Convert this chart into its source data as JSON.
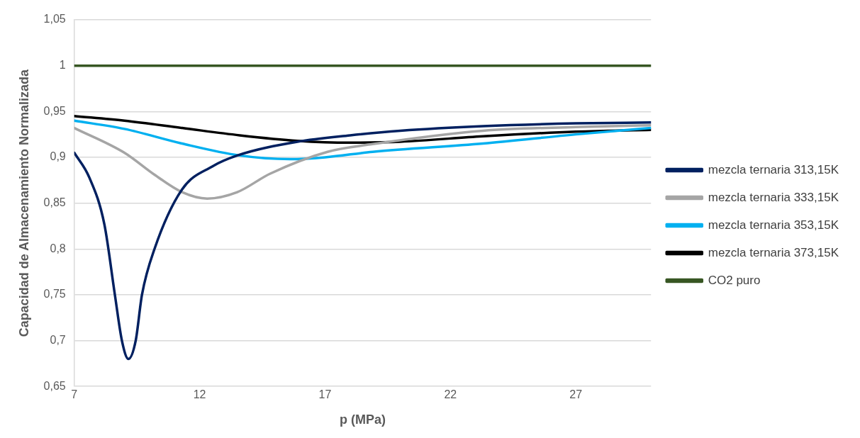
{
  "chart_data": {
    "type": "line",
    "xlabel": "p (MPa)",
    "ylabel": "Capacidad de Almacenamiento Normalizada",
    "xlim": [
      7,
      30
    ],
    "xticks": [
      7,
      12,
      17,
      22,
      27
    ],
    "ylim": [
      0.65,
      1.05
    ],
    "yticks": [
      {
        "value": 0.65,
        "label": "0,65"
      },
      {
        "value": 0.7,
        "label": "0,7"
      },
      {
        "value": 0.75,
        "label": "0,75"
      },
      {
        "value": 0.8,
        "label": "0,8"
      },
      {
        "value": 0.85,
        "label": "0,85"
      },
      {
        "value": 0.9,
        "label": "0,9"
      },
      {
        "value": 0.95,
        "label": "0,95"
      },
      {
        "value": 1,
        "label": "1"
      },
      {
        "value": 1.05,
        "label": "1,05"
      }
    ],
    "grid": "y",
    "legend": "right",
    "marker": "none",
    "line_style": "solid",
    "series": [
      {
        "name": "mezcla ternaria 313,15K",
        "color": "#002060",
        "x": [
          7,
          7.6,
          8.2,
          8.62,
          8.9,
          9.16,
          9.45,
          9.7,
          10.2,
          11.3,
          12.5,
          13.5,
          15.9,
          18,
          20,
          23.3,
          27,
          30
        ],
        "values": [
          0.905,
          0.878,
          0.827,
          0.75,
          0.7,
          0.68,
          0.7,
          0.75,
          0.8,
          0.865,
          0.89,
          0.902,
          0.917,
          0.924,
          0.929,
          0.934,
          0.937,
          0.938
        ]
      },
      {
        "name": "mezcla ternaria 333,15K",
        "color": "#a5a5a5",
        "x": [
          7,
          9,
          10.2,
          11.3,
          12.3,
          13.5,
          14.8,
          17.1,
          18.8,
          23.3,
          27,
          30
        ],
        "values": [
          0.932,
          0.905,
          0.881,
          0.862,
          0.855,
          0.862,
          0.882,
          0.906,
          0.914,
          0.929,
          0.933,
          0.935
        ]
      },
      {
        "name": "mezcla ternaria 353,15K",
        "color": "#00b0f0",
        "x": [
          7,
          9,
          11.3,
          13.6,
          15.6,
          17,
          18.9,
          23.3,
          27,
          30
        ],
        "values": [
          0.94,
          0.931,
          0.915,
          0.902,
          0.898,
          0.9,
          0.906,
          0.915,
          0.925,
          0.932
        ]
      },
      {
        "name": "mezcla ternaria 373,15K",
        "color": "#000000",
        "x": [
          7,
          9,
          11.3,
          13.6,
          15.9,
          18,
          20,
          23.3,
          27,
          30
        ],
        "values": [
          0.945,
          0.94,
          0.932,
          0.924,
          0.918,
          0.916,
          0.917,
          0.923,
          0.928,
          0.93
        ]
      },
      {
        "name": "CO2 puro",
        "color": "#375623",
        "x": [
          7,
          30
        ],
        "values": [
          1,
          1
        ]
      }
    ]
  }
}
